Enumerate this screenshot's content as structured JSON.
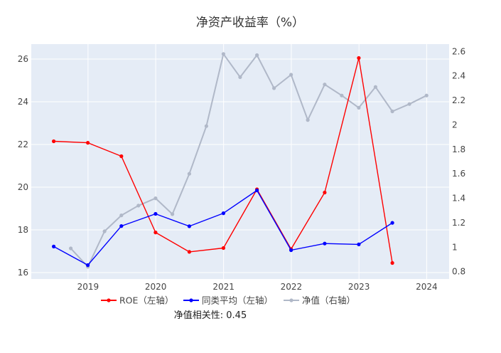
{
  "chart_data": {
    "type": "line",
    "title": "净资产收益率（%）",
    "x_ticks": [
      "2019",
      "2020",
      "2021",
      "2022",
      "2023",
      "2024"
    ],
    "y_left_ticks": [
      "16",
      "18",
      "20",
      "22",
      "24",
      "26"
    ],
    "y_right_ticks": [
      "0.8",
      "1",
      "1.2",
      "1.4",
      "1.6",
      "1.8",
      "2",
      "2.2",
      "2.4",
      "2.6"
    ],
    "y_left_range": [
      15.7,
      26.7
    ],
    "y_right_range": [
      0.74,
      2.66
    ],
    "x_range": [
      "2018-03-01",
      "2024-05-01"
    ],
    "grid": true,
    "legend_position": "bottom",
    "series": [
      {
        "name": "ROE（左轴）",
        "axis": "left",
        "color": "#ff0000",
        "x": [
          "2018-06-30",
          "2018-12-31",
          "2019-06-30",
          "2019-12-31",
          "2020-06-30",
          "2020-12-31",
          "2021-06-30",
          "2021-12-31",
          "2022-06-30",
          "2022-12-31",
          "2023-06-30"
        ],
        "values": [
          22.15,
          22.08,
          21.45,
          17.88,
          16.97,
          17.15,
          19.9,
          17.1,
          19.75,
          26.05,
          16.45
        ]
      },
      {
        "name": "同类平均（左轴）",
        "axis": "left",
        "color": "#0000ff",
        "x": [
          "2018-06-30",
          "2018-12-31",
          "2019-06-30",
          "2019-12-31",
          "2020-06-30",
          "2020-12-31",
          "2021-06-30",
          "2021-12-31",
          "2022-06-30",
          "2022-12-31",
          "2023-06-30"
        ],
        "values": [
          17.22,
          16.35,
          18.18,
          18.75,
          18.17,
          18.78,
          19.85,
          17.05,
          17.36,
          17.32,
          18.33
        ]
      },
      {
        "name": "净值（右轴）",
        "axis": "right",
        "color": "#b0b8c8",
        "x": [
          "2018-09-30",
          "2018-12-31",
          "2019-03-31",
          "2019-06-30",
          "2019-09-30",
          "2019-12-31",
          "2020-03-31",
          "2020-06-30",
          "2020-09-30",
          "2020-12-31",
          "2021-03-31",
          "2021-06-30",
          "2021-09-30",
          "2021-12-31",
          "2022-03-31",
          "2022-06-30",
          "2022-09-30",
          "2022-12-31",
          "2023-03-31",
          "2023-06-30",
          "2023-09-30",
          "2023-12-31"
        ],
        "values": [
          0.99,
          0.84,
          1.13,
          1.26,
          1.34,
          1.4,
          1.27,
          1.6,
          1.99,
          2.58,
          2.39,
          2.57,
          2.3,
          2.41,
          2.04,
          2.33,
          2.24,
          2.14,
          2.31,
          2.11,
          2.17,
          2.24
        ]
      }
    ]
  },
  "note": "净值相关性: 0.45"
}
